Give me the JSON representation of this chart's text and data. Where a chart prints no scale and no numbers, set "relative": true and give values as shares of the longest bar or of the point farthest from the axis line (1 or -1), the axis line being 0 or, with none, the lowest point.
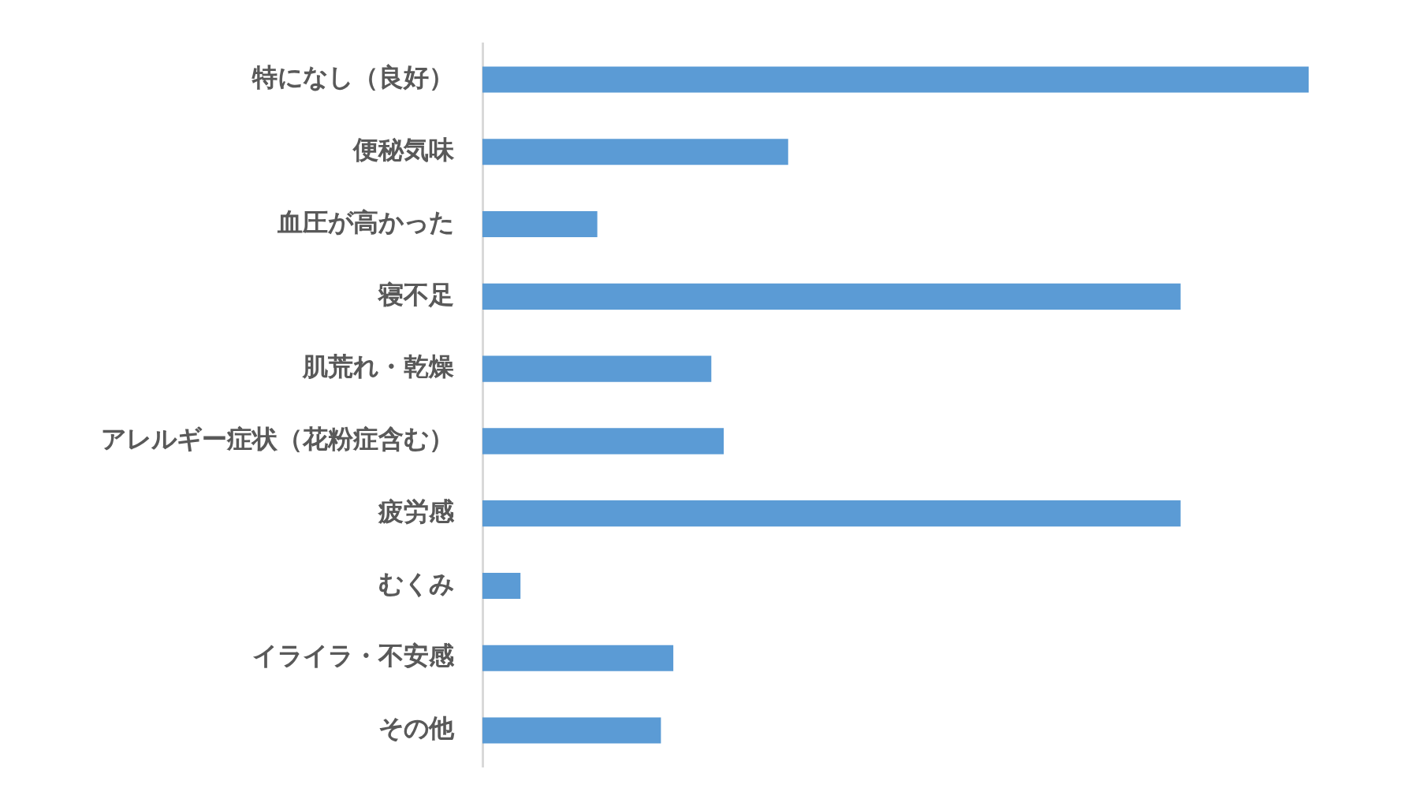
{
  "chart_data": {
    "type": "bar",
    "orientation": "horizontal",
    "relative": true,
    "categories": [
      "特になし（良好）",
      "便秘気味",
      "血圧が高かった",
      "寝不足",
      "肌荒れ・乾燥",
      "アレルギー症状（花粉症含む）",
      "疲労感",
      "むくみ",
      "イライラ・不安感",
      "その他"
    ],
    "values": [
      1,
      0.37,
      0.139,
      0.845,
      0.277,
      0.292,
      0.845,
      0.046,
      0.231,
      0.216
    ],
    "color": "#5b9bd5",
    "legend": false
  }
}
